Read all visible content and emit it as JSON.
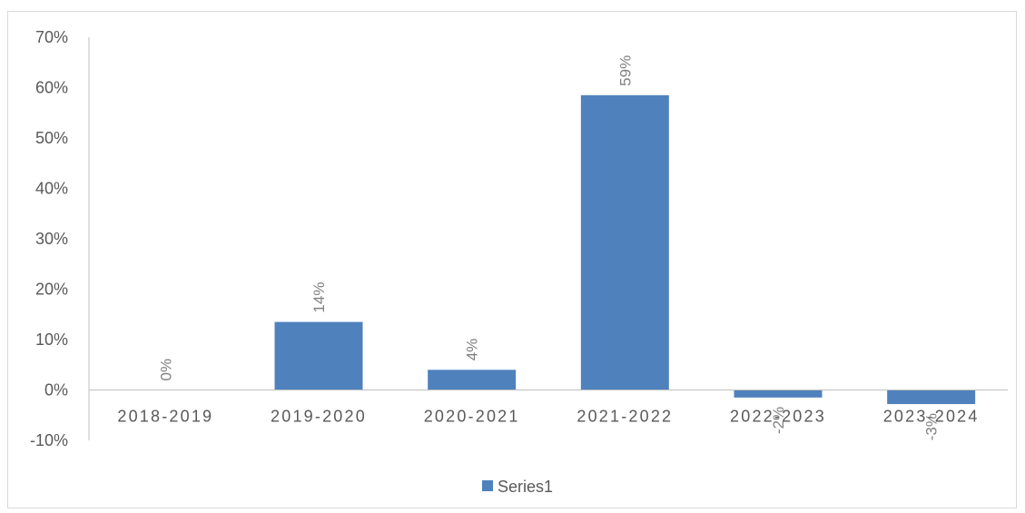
{
  "chart_data": {
    "type": "bar",
    "categories": [
      "2018-2019",
      "2019-2020",
      "2020-2021",
      "2021-2022",
      "2022-2023",
      "2023-2024"
    ],
    "series": [
      {
        "name": "Series1",
        "values": [
          0,
          13.5,
          4,
          58.5,
          -1.5,
          -2.8
        ],
        "labels": [
          "0%",
          "14%",
          "4%",
          "59%",
          "-2%",
          "-3%"
        ]
      }
    ],
    "y_ticks": [
      "70%",
      "60%",
      "50%",
      "40%",
      "30%",
      "20%",
      "10%",
      "0%",
      "-10%"
    ],
    "ylim": [
      -10,
      70
    ],
    "y_unit": "%",
    "grid": false,
    "legend_position": "bottom",
    "bar_color": "#4f81bd",
    "data_label_color": "#808080",
    "axis_color": "#bfbfbf",
    "text_color": "#595959"
  }
}
